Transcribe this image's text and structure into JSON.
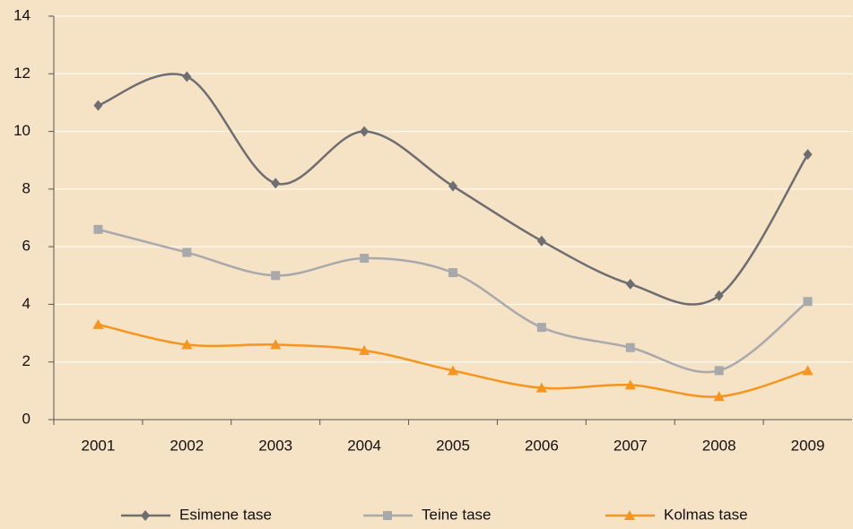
{
  "chart_data": {
    "type": "line",
    "categories": [
      "2001",
      "2002",
      "2003",
      "2004",
      "2005",
      "2006",
      "2007",
      "2008",
      "2009"
    ],
    "series": [
      {
        "name": "Esimene tase",
        "color": "#6d6e71",
        "marker": "diamond",
        "values": [
          10.9,
          11.9,
          8.2,
          10.0,
          8.1,
          6.2,
          4.7,
          4.3,
          9.2
        ]
      },
      {
        "name": "Teine tase",
        "color": "#a7a9ac",
        "marker": "square",
        "values": [
          6.6,
          5.8,
          5.0,
          5.6,
          5.1,
          3.2,
          2.5,
          1.7,
          4.1
        ]
      },
      {
        "name": "Kolmas tase",
        "color": "#f7941d",
        "marker": "triangle",
        "values": [
          3.3,
          2.6,
          2.6,
          2.4,
          1.7,
          1.1,
          1.2,
          0.8,
          1.7
        ]
      }
    ],
    "ylim": [
      0,
      14
    ],
    "yticks": [
      0,
      2,
      4,
      6,
      8,
      10,
      12,
      14
    ],
    "grid": true,
    "legend": "bottom"
  }
}
